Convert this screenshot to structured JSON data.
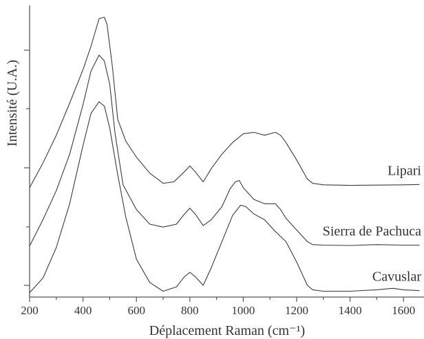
{
  "chart_data": {
    "type": "line",
    "xlabel": "Déplacement Raman (cm⁻¹)",
    "ylabel": "Intensité (U.A.)",
    "xlim": [
      200,
      1660
    ],
    "ylim": [
      0,
      1
    ],
    "x_ticks": [
      200,
      400,
      600,
      800,
      1000,
      1200,
      1400,
      1600
    ],
    "y_scale": "relative intensity, no numeric tick labels",
    "grid": false,
    "legend": "labels placed at right end of each curve",
    "line_color": "#3a3a3a",
    "series": [
      {
        "name": "Lipari",
        "x": [
          200,
          250,
          300,
          350,
          400,
          430,
          460,
          480,
          490,
          510,
          530,
          560,
          600,
          650,
          700,
          740,
          780,
          800,
          820,
          850,
          880,
          920,
          960,
          1000,
          1040,
          1080,
          1120,
          1140,
          1160,
          1200,
          1240,
          1260,
          1300,
          1400,
          1500,
          1600,
          1660
        ],
        "y": [
          0.375,
          0.46,
          0.555,
          0.665,
          0.78,
          0.86,
          0.955,
          0.96,
          0.935,
          0.79,
          0.61,
          0.535,
          0.48,
          0.425,
          0.39,
          0.395,
          0.43,
          0.45,
          0.43,
          0.395,
          0.44,
          0.49,
          0.53,
          0.56,
          0.565,
          0.555,
          0.565,
          0.555,
          0.53,
          0.47,
          0.405,
          0.39,
          0.385,
          0.383,
          0.384,
          0.385,
          0.386
        ]
      },
      {
        "name": "Sierra de Pachuca",
        "x": [
          200,
          250,
          300,
          350,
          400,
          430,
          460,
          480,
          500,
          520,
          550,
          600,
          650,
          700,
          750,
          780,
          800,
          820,
          850,
          880,
          920,
          950,
          970,
          985,
          1000,
          1040,
          1080,
          1120,
          1140,
          1160,
          1200,
          1240,
          1260,
          1300,
          1400,
          1500,
          1600,
          1660
        ],
        "y": [
          0.175,
          0.265,
          0.365,
          0.49,
          0.66,
          0.775,
          0.83,
          0.81,
          0.73,
          0.56,
          0.385,
          0.3,
          0.25,
          0.24,
          0.25,
          0.285,
          0.305,
          0.285,
          0.245,
          0.265,
          0.31,
          0.37,
          0.395,
          0.4,
          0.375,
          0.335,
          0.32,
          0.32,
          0.3,
          0.27,
          0.23,
          0.19,
          0.18,
          0.178,
          0.177,
          0.18,
          0.178,
          0.178
        ]
      },
      {
        "name": "Cavuslar",
        "x": [
          200,
          250,
          300,
          350,
          400,
          430,
          460,
          480,
          500,
          530,
          560,
          600,
          650,
          700,
          750,
          780,
          800,
          820,
          850,
          880,
          920,
          960,
          990,
          1010,
          1040,
          1080,
          1120,
          1160,
          1200,
          1240,
          1260,
          1300,
          1400,
          1500,
          1560,
          1600,
          1660
        ],
        "y": [
          0.015,
          0.065,
          0.17,
          0.32,
          0.52,
          0.63,
          0.67,
          0.655,
          0.58,
          0.42,
          0.275,
          0.13,
          0.05,
          0.02,
          0.035,
          0.07,
          0.085,
          0.07,
          0.04,
          0.1,
          0.19,
          0.28,
          0.315,
          0.31,
          0.285,
          0.265,
          0.225,
          0.19,
          0.12,
          0.04,
          0.025,
          0.02,
          0.02,
          0.025,
          0.03,
          0.025,
          0.022
        ]
      }
    ]
  }
}
